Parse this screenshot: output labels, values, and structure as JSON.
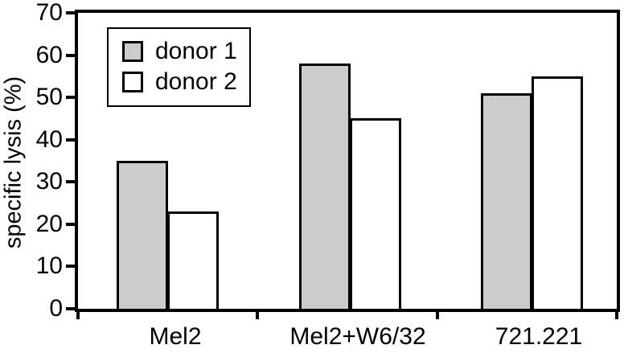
{
  "chart_data": {
    "type": "bar",
    "title": "",
    "ylabel": "specific lysis (%)",
    "xlabel": "",
    "categories": [
      "Mel2",
      "Mel2+W6/32",
      "721.221"
    ],
    "series": [
      {
        "name": "donor 1",
        "color": "#cccccc",
        "values": [
          35,
          58,
          51
        ]
      },
      {
        "name": "donor 2",
        "color": "#ffffff",
        "values": [
          23,
          45,
          55
        ]
      }
    ],
    "ylim": [
      0,
      70
    ],
    "yticks": [
      0,
      10,
      20,
      30,
      40,
      50,
      60,
      70
    ],
    "grid": false,
    "legend_position": "top-left",
    "legend_entries": [
      "donor 1",
      "donor 2"
    ],
    "bar_border_color": "#000000",
    "axis_color": "#000000",
    "background_color": "#ffffff"
  }
}
